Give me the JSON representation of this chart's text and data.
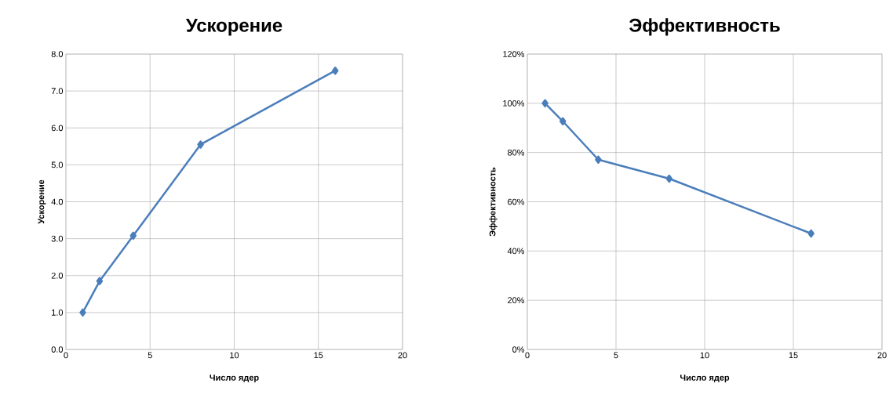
{
  "chart_data": [
    {
      "type": "line",
      "title": "Ускорение",
      "xlabel": "Число ядер",
      "ylabel": "Ускорение",
      "x": [
        1,
        2,
        4,
        8,
        16
      ],
      "series": [
        {
          "color": "#4a7ebb",
          "values": [
            1.0,
            1.85,
            3.08,
            5.55,
            7.55
          ]
        }
      ],
      "xlim": [
        0,
        20
      ],
      "xticks": [
        0,
        5,
        10,
        15,
        20
      ],
      "ylim": [
        0,
        8
      ],
      "yticks": [
        {
          "value": 0,
          "label": "0.0"
        },
        {
          "value": 1,
          "label": "1.0"
        },
        {
          "value": 2,
          "label": "2.0"
        },
        {
          "value": 3,
          "label": "3.0"
        },
        {
          "value": 4,
          "label": "4.0"
        },
        {
          "value": 5,
          "label": "5.0"
        },
        {
          "value": 6,
          "label": "6.0"
        },
        {
          "value": 7,
          "label": "7.0"
        },
        {
          "value": 8,
          "label": "8.0"
        }
      ],
      "grid": true,
      "marker": "diamond",
      "line_style": "solid"
    },
    {
      "type": "line",
      "title": "Эффективность",
      "xlabel": "Число ядер",
      "ylabel": "Эффективность",
      "x": [
        1,
        2,
        4,
        8,
        16
      ],
      "series": [
        {
          "color": "#4a7ebb",
          "values": [
            100,
            92.7,
            77.1,
            69.4,
            47.1
          ]
        }
      ],
      "xlim": [
        0,
        20
      ],
      "xticks": [
        0,
        5,
        10,
        15,
        20
      ],
      "ylim": [
        0,
        120
      ],
      "yticks": [
        {
          "value": 0,
          "label": "0%"
        },
        {
          "value": 20,
          "label": "20%"
        },
        {
          "value": 40,
          "label": "40%"
        },
        {
          "value": 60,
          "label": "60%"
        },
        {
          "value": 80,
          "label": "80%"
        },
        {
          "value": 100,
          "label": "100%"
        },
        {
          "value": 120,
          "label": "120%"
        }
      ],
      "grid": true,
      "marker": "diamond",
      "line_style": "solid"
    }
  ]
}
